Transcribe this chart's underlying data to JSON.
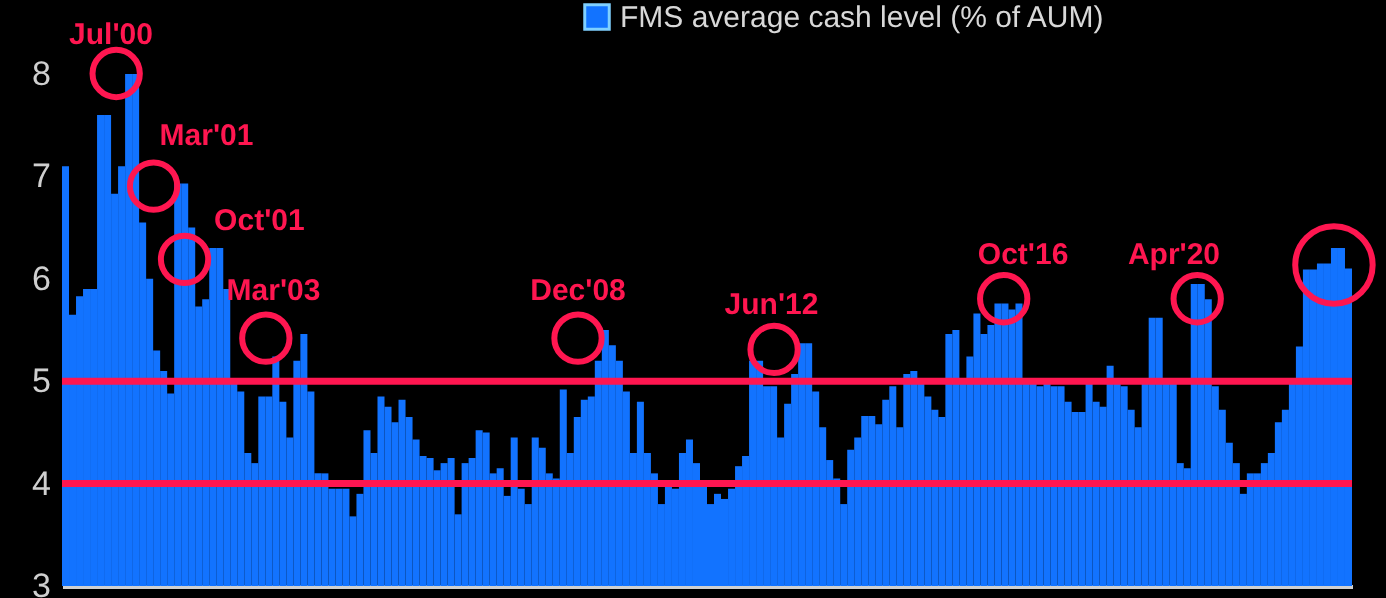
{
  "chart_data": {
    "type": "bar",
    "legend": "top",
    "categories": [
      null,
      null,
      null,
      null,
      null,
      null,
      null,
      null,
      null,
      null,
      null,
      null,
      null,
      null,
      null,
      null,
      null,
      null,
      null,
      null,
      null,
      null,
      null,
      null,
      null,
      null,
      null,
      null,
      null,
      null,
      null,
      null,
      null,
      null,
      null,
      null,
      null,
      null,
      null,
      null,
      null,
      null,
      null,
      null,
      null,
      null,
      null,
      null,
      null,
      null,
      null,
      null,
      null,
      null,
      null,
      null,
      null,
      null,
      null,
      null,
      null,
      null,
      null,
      null,
      null,
      null,
      null,
      null,
      null,
      null,
      null,
      null,
      null,
      null,
      null,
      null,
      null,
      null,
      null,
      null,
      null,
      null,
      null,
      null,
      null,
      null,
      null,
      null,
      null,
      null,
      null,
      null,
      null,
      null,
      null,
      null,
      null,
      null,
      null,
      null,
      null,
      null,
      null,
      null,
      null,
      null,
      null,
      null,
      null,
      null,
      null,
      null,
      null,
      null,
      null,
      null,
      null,
      null,
      null,
      null,
      null,
      null,
      null,
      null,
      null,
      null,
      null,
      null,
      null,
      null,
      null,
      null,
      null,
      null,
      null,
      null,
      null,
      null,
      null,
      null,
      null,
      null,
      null,
      null,
      null,
      null,
      null,
      null,
      null,
      null,
      null,
      null,
      null,
      null,
      null,
      null,
      null,
      null,
      null,
      null,
      null,
      null,
      null,
      null,
      null,
      null,
      null,
      null,
      null,
      null,
      null,
      null,
      null,
      null,
      null,
      null,
      null,
      null,
      null,
      null,
      null,
      null,
      null,
      null
    ],
    "series": [
      {
        "name": "FMS average cash level (% of AUM)",
        "color": "#1273ff",
        "values": [
          7.1,
          5.65,
          5.83,
          5.9,
          5.9,
          7.6,
          7.6,
          6.83,
          7.1,
          8.0,
          8.0,
          6.55,
          6.0,
          5.3,
          5.1,
          4.88,
          6.93,
          6.93,
          6.5,
          5.73,
          5.8,
          6.3,
          6.3,
          5.9,
          5.0,
          4.9,
          4.3,
          4.2,
          4.85,
          4.85,
          5.24,
          4.8,
          4.45,
          5.2,
          5.46,
          4.9,
          4.1,
          4.1,
          3.95,
          3.95,
          3.95,
          3.68,
          3.9,
          4.52,
          4.3,
          4.85,
          4.75,
          4.6,
          4.82,
          4.65,
          4.43,
          4.27,
          4.25,
          4.13,
          4.2,
          4.25,
          3.7,
          4.2,
          4.25,
          4.52,
          4.5,
          4.1,
          4.15,
          3.88,
          4.45,
          3.95,
          3.8,
          4.45,
          4.35,
          4.1,
          4.05,
          4.92,
          4.3,
          4.65,
          4.82,
          4.85,
          5.2,
          5.5,
          5.35,
          5.2,
          4.9,
          4.3,
          4.8,
          4.3,
          4.1,
          3.8,
          4.0,
          3.95,
          4.3,
          4.43,
          4.2,
          4.0,
          3.8,
          3.9,
          3.85,
          3.95,
          4.17,
          4.27,
          5.2,
          5.2,
          4.95,
          4.95,
          4.45,
          4.78,
          5.07,
          5.37,
          5.37,
          4.9,
          4.55,
          4.23,
          4.05,
          3.8,
          4.33,
          4.45,
          4.66,
          4.66,
          4.58,
          4.82,
          4.95,
          4.55,
          5.07,
          5.1,
          5.0,
          4.85,
          4.72,
          4.65,
          5.46,
          5.5,
          5.0,
          5.24,
          5.66,
          5.46,
          5.55,
          5.76,
          5.76,
          5.7,
          5.76,
          5.0,
          5.0,
          4.95,
          5.0,
          4.95,
          4.95,
          4.8,
          4.7,
          4.7,
          5.0,
          4.8,
          4.75,
          5.15,
          5.0,
          4.95,
          4.72,
          4.55,
          5.0,
          5.62,
          5.62,
          5.0,
          5.0,
          4.2,
          4.15,
          5.95,
          5.95,
          5.8,
          4.95,
          4.72,
          4.4,
          4.2,
          3.9,
          4.1,
          4.1,
          4.2,
          4.3,
          4.6,
          4.72,
          5.0,
          5.34,
          6.09,
          6.09,
          6.15,
          6.15,
          6.3,
          6.3,
          6.1
        ]
      }
    ],
    "ylim": [
      3,
      8
    ],
    "yticks": [
      3,
      4,
      5,
      6,
      7,
      8
    ],
    "grid": false,
    "ref_lines": [
      {
        "axis": "y",
        "value": 5,
        "color": "#ff1650"
      },
      {
        "axis": "y",
        "value": 4,
        "color": "#ff1650"
      }
    ],
    "annotations": [
      "Jul'00",
      "Mar'01",
      "Oct'01",
      "Mar'03",
      "Dec'08",
      "Jun'12",
      "Oct'16",
      "Apr'20"
    ]
  }
}
